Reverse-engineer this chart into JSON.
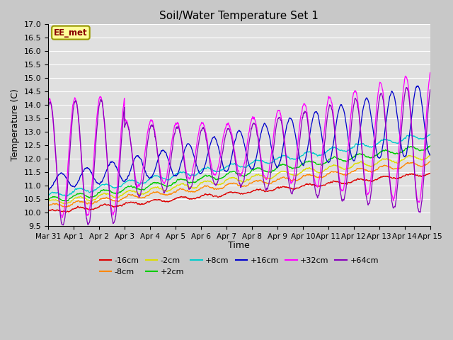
{
  "title": "Soil/Water Temperature Set 1",
  "xlabel": "Time",
  "ylabel": "Temperature (C)",
  "ylim": [
    9.5,
    17.0
  ],
  "yticks": [
    9.5,
    10.0,
    10.5,
    11.0,
    11.5,
    12.0,
    12.5,
    13.0,
    13.5,
    14.0,
    14.5,
    15.0,
    15.5,
    16.0,
    16.5,
    17.0
  ],
  "plot_bg_color": "#e0e0e0",
  "fig_bg_color": "#c8c8c8",
  "series_colors": {
    "-16cm": "#dd0000",
    "-8cm": "#ff8800",
    "-2cm": "#dddd00",
    "+2cm": "#00cc00",
    "+8cm": "#00cccc",
    "+16cm": "#0000cc",
    "+32cm": "#ff00ff",
    "+64cm": "#8800bb"
  },
  "legend_label": "EE_met",
  "n_days": 15,
  "xtick_labels": [
    "Mar 31",
    "Apr 1",
    "Apr 2",
    "Apr 3",
    "Apr 4",
    "Apr 5",
    "Apr 6",
    "Apr 7",
    "Apr 8",
    "Apr 9",
    "Apr 10",
    "Apr 11",
    "Apr 12",
    "Apr 13",
    "Apr 14",
    "Apr 15"
  ],
  "n_points_per_day": 144
}
